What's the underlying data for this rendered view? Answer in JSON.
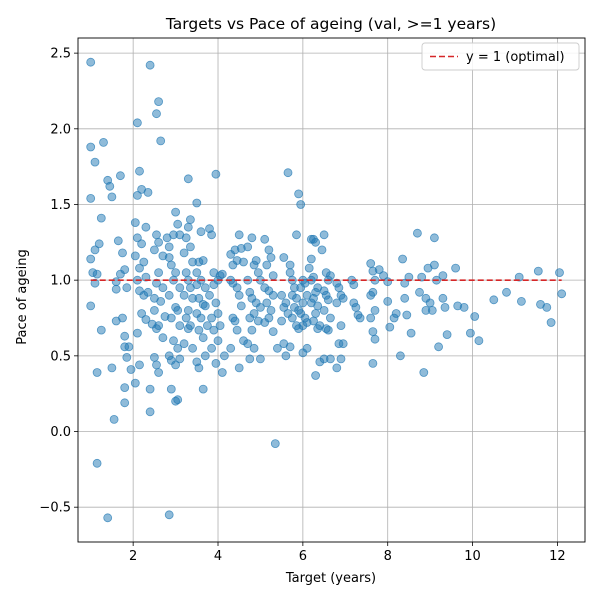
{
  "chart_data": {
    "type": "scatter",
    "title": "Targets vs Pace of ageing (val, >=1 years)",
    "xlabel": "Target (years)",
    "ylabel": "Pace of ageing",
    "xlim": [
      0.7,
      12.65
    ],
    "ylim": [
      -0.73,
      2.6
    ],
    "xticks": [
      2,
      4,
      6,
      8,
      10,
      12
    ],
    "yticks": [
      -0.5,
      0.0,
      0.5,
      1.0,
      1.5,
      2.0,
      2.5
    ],
    "ytick_labels": [
      "−0.5",
      "0.0",
      "0.5",
      "1.0",
      "1.5",
      "2.0",
      "2.5"
    ],
    "grid": true,
    "legend_position": "top-right",
    "colors": {
      "points": "#1f77b4",
      "reference_line": "#d62728"
    },
    "reference_line": {
      "label": "y = 1 (optimal)",
      "y": 1.0,
      "style": "dashed"
    },
    "points": [
      [
        1.0,
        2.44
      ],
      [
        1.0,
        1.88
      ],
      [
        1.1,
        1.78
      ],
      [
        1.3,
        1.91
      ],
      [
        1.4,
        1.66
      ],
      [
        1.45,
        1.62
      ],
      [
        1.5,
        1.55
      ],
      [
        1.0,
        1.54
      ],
      [
        1.25,
        1.41
      ],
      [
        1.2,
        1.24
      ],
      [
        1.1,
        1.2
      ],
      [
        1.0,
        1.14
      ],
      [
        1.05,
        1.05
      ],
      [
        1.15,
        1.04
      ],
      [
        1.1,
        0.98
      ],
      [
        1.0,
        0.83
      ],
      [
        1.25,
        0.67
      ],
      [
        1.15,
        0.39
      ],
      [
        1.5,
        0.42
      ],
      [
        1.55,
        0.08
      ],
      [
        1.15,
        -0.21
      ],
      [
        1.4,
        -0.57
      ],
      [
        1.7,
        1.69
      ],
      [
        1.65,
        1.26
      ],
      [
        1.75,
        1.18
      ],
      [
        1.8,
        1.07
      ],
      [
        1.7,
        1.04
      ],
      [
        1.6,
        0.99
      ],
      [
        1.6,
        0.94
      ],
      [
        1.85,
        0.95
      ],
      [
        1.6,
        0.73
      ],
      [
        1.75,
        0.75
      ],
      [
        1.8,
        0.63
      ],
      [
        1.8,
        0.56
      ],
      [
        1.9,
        0.56
      ],
      [
        1.85,
        0.49
      ],
      [
        1.95,
        0.41
      ],
      [
        1.8,
        0.29
      ],
      [
        1.8,
        0.19
      ],
      [
        2.1,
        2.04
      ],
      [
        2.15,
        1.72
      ],
      [
        2.2,
        1.6
      ],
      [
        2.35,
        1.58
      ],
      [
        2.1,
        1.56
      ],
      [
        2.3,
        1.35
      ],
      [
        2.05,
        1.38
      ],
      [
        2.1,
        1.28
      ],
      [
        2.2,
        1.24
      ],
      [
        2.05,
        1.16
      ],
      [
        2.15,
        1.08
      ],
      [
        2.25,
        1.12
      ],
      [
        2.3,
        1.02
      ],
      [
        2.1,
        1.0
      ],
      [
        2.15,
        0.93
      ],
      [
        2.25,
        0.9
      ],
      [
        2.35,
        0.92
      ],
      [
        2.2,
        0.78
      ],
      [
        2.3,
        0.74
      ],
      [
        2.45,
        0.71
      ],
      [
        2.1,
        0.65
      ],
      [
        2.15,
        0.44
      ],
      [
        2.05,
        0.32
      ],
      [
        2.4,
        0.28
      ],
      [
        2.4,
        0.13
      ],
      [
        2.4,
        2.42
      ],
      [
        2.55,
        2.1
      ],
      [
        2.6,
        2.18
      ],
      [
        2.65,
        1.92
      ],
      [
        2.55,
        1.3
      ],
      [
        2.6,
        1.25
      ],
      [
        2.5,
        1.2
      ],
      [
        2.7,
        1.16
      ],
      [
        2.6,
        1.05
      ],
      [
        2.55,
        0.98
      ],
      [
        2.7,
        0.95
      ],
      [
        2.5,
        0.88
      ],
      [
        2.65,
        0.86
      ],
      [
        2.5,
        0.8
      ],
      [
        2.75,
        0.76
      ],
      [
        2.6,
        0.7
      ],
      [
        2.55,
        0.68
      ],
      [
        2.7,
        0.62
      ],
      [
        2.5,
        0.49
      ],
      [
        2.55,
        0.44
      ],
      [
        2.6,
        0.39
      ],
      [
        2.9,
        0.28
      ],
      [
        2.85,
        -0.55
      ],
      [
        2.8,
        1.28
      ],
      [
        2.85,
        1.22
      ],
      [
        2.95,
        1.3
      ],
      [
        3.0,
        1.45
      ],
      [
        3.05,
        1.37
      ],
      [
        3.1,
        1.3
      ],
      [
        2.85,
        1.15
      ],
      [
        2.9,
        1.1
      ],
      [
        3.0,
        1.05
      ],
      [
        2.95,
        1.0
      ],
      [
        3.1,
        0.95
      ],
      [
        2.85,
        0.9
      ],
      [
        3.0,
        0.82
      ],
      [
        3.05,
        0.8
      ],
      [
        2.9,
        0.75
      ],
      [
        3.1,
        0.7
      ],
      [
        2.95,
        0.6
      ],
      [
        3.05,
        0.55
      ],
      [
        2.85,
        0.5
      ],
      [
        2.9,
        0.47
      ],
      [
        3.0,
        0.44
      ],
      [
        3.1,
        0.48
      ],
      [
        3.05,
        0.21
      ],
      [
        3.0,
        0.2
      ],
      [
        3.3,
        1.67
      ],
      [
        3.35,
        1.4
      ],
      [
        3.3,
        1.35
      ],
      [
        3.25,
        1.28
      ],
      [
        3.35,
        1.22
      ],
      [
        3.2,
        1.18
      ],
      [
        3.4,
        1.12
      ],
      [
        3.25,
        1.05
      ],
      [
        3.3,
        1.0
      ],
      [
        3.35,
        0.95
      ],
      [
        3.2,
        0.9
      ],
      [
        3.4,
        0.88
      ],
      [
        3.3,
        0.8
      ],
      [
        3.25,
        0.75
      ],
      [
        3.35,
        0.7
      ],
      [
        3.3,
        0.68
      ],
      [
        3.2,
        0.58
      ],
      [
        3.4,
        0.55
      ],
      [
        3.5,
        1.51
      ],
      [
        3.6,
        1.32
      ],
      [
        3.55,
        1.12
      ],
      [
        3.65,
        1.13
      ],
      [
        3.5,
        1.05
      ],
      [
        3.6,
        1.0
      ],
      [
        3.5,
        0.97
      ],
      [
        3.7,
        0.95
      ],
      [
        3.55,
        0.88
      ],
      [
        3.65,
        0.84
      ],
      [
        3.7,
        0.83
      ],
      [
        3.5,
        0.78
      ],
      [
        3.6,
        0.75
      ],
      [
        3.75,
        0.7
      ],
      [
        3.55,
        0.67
      ],
      [
        3.65,
        0.62
      ],
      [
        3.7,
        0.5
      ],
      [
        3.5,
        0.46
      ],
      [
        3.55,
        0.42
      ],
      [
        3.65,
        0.28
      ],
      [
        3.8,
        1.34
      ],
      [
        3.85,
        1.3
      ],
      [
        3.95,
        1.7
      ],
      [
        3.9,
        1.05
      ],
      [
        4.0,
        1.0
      ],
      [
        4.05,
        1.03
      ],
      [
        3.9,
        0.97
      ],
      [
        3.8,
        0.9
      ],
      [
        3.95,
        0.85
      ],
      [
        4.0,
        0.78
      ],
      [
        3.85,
        0.75
      ],
      [
        4.05,
        0.7
      ],
      [
        3.9,
        0.67
      ],
      [
        4.0,
        0.6
      ],
      [
        3.85,
        0.55
      ],
      [
        3.95,
        0.45
      ],
      [
        4.1,
        1.04
      ],
      [
        4.15,
        0.5
      ],
      [
        4.1,
        0.39
      ],
      [
        4.3,
        1.17
      ],
      [
        4.35,
        1.1
      ],
      [
        4.4,
        1.2
      ],
      [
        4.45,
        1.13
      ],
      [
        4.5,
        1.3
      ],
      [
        4.55,
        1.21
      ],
      [
        4.6,
        1.12
      ],
      [
        4.3,
        1.0
      ],
      [
        4.35,
        0.98
      ],
      [
        4.45,
        0.95
      ],
      [
        4.5,
        0.9
      ],
      [
        4.55,
        0.83
      ],
      [
        4.35,
        0.75
      ],
      [
        4.4,
        0.73
      ],
      [
        4.45,
        0.67
      ],
      [
        4.3,
        0.55
      ],
      [
        4.5,
        0.42
      ],
      [
        4.6,
        0.6
      ],
      [
        4.7,
        1.22
      ],
      [
        4.8,
        1.28
      ],
      [
        4.85,
        1.1
      ],
      [
        4.9,
        1.13
      ],
      [
        4.95,
        1.05
      ],
      [
        5.0,
        1.0
      ],
      [
        4.7,
        1.0
      ],
      [
        4.75,
        0.92
      ],
      [
        4.8,
        0.88
      ],
      [
        4.9,
        0.85
      ],
      [
        5.0,
        0.82
      ],
      [
        4.85,
        0.78
      ],
      [
        4.75,
        0.75
      ],
      [
        4.95,
        0.73
      ],
      [
        4.8,
        0.67
      ],
      [
        4.7,
        0.58
      ],
      [
        4.85,
        0.55
      ],
      [
        4.75,
        0.48
      ],
      [
        5.0,
        0.48
      ],
      [
        5.1,
        1.27
      ],
      [
        5.2,
        1.2
      ],
      [
        5.25,
        1.15
      ],
      [
        5.15,
        1.1
      ],
      [
        5.3,
        1.03
      ],
      [
        5.1,
        0.95
      ],
      [
        5.2,
        0.93
      ],
      [
        5.3,
        0.9
      ],
      [
        5.15,
        0.85
      ],
      [
        5.25,
        0.8
      ],
      [
        5.2,
        0.75
      ],
      [
        5.1,
        0.72
      ],
      [
        5.3,
        0.66
      ],
      [
        5.4,
        0.55
      ],
      [
        5.35,
        -0.08
      ],
      [
        5.55,
        1.15
      ],
      [
        5.5,
        0.9
      ],
      [
        5.6,
        0.85
      ],
      [
        5.55,
        0.82
      ],
      [
        5.65,
        0.78
      ],
      [
        5.5,
        0.73
      ],
      [
        5.6,
        0.5
      ],
      [
        5.55,
        0.58
      ],
      [
        5.65,
        1.71
      ],
      [
        5.7,
        1.1
      ],
      [
        5.7,
        1.05
      ],
      [
        5.75,
        1.0
      ],
      [
        5.8,
        0.95
      ],
      [
        5.75,
        0.9
      ],
      [
        5.85,
        0.88
      ],
      [
        5.8,
        0.82
      ],
      [
        5.9,
        0.8
      ],
      [
        5.75,
        0.75
      ],
      [
        5.85,
        0.7
      ],
      [
        5.7,
        0.56
      ],
      [
        5.9,
        1.57
      ],
      [
        5.95,
        1.5
      ],
      [
        5.85,
        1.3
      ],
      [
        6.0,
        1.0
      ],
      [
        6.05,
        0.98
      ],
      [
        5.95,
        0.95
      ],
      [
        6.1,
        0.9
      ],
      [
        6.0,
        0.85
      ],
      [
        5.95,
        0.78
      ],
      [
        6.05,
        0.75
      ],
      [
        6.1,
        0.72
      ],
      [
        6.0,
        0.7
      ],
      [
        5.9,
        0.68
      ],
      [
        6.1,
        0.55
      ],
      [
        6.0,
        0.52
      ],
      [
        6.2,
        1.27
      ],
      [
        6.25,
        1.27
      ],
      [
        6.3,
        1.25
      ],
      [
        6.2,
        1.14
      ],
      [
        6.15,
        1.08
      ],
      [
        6.25,
        1.02
      ],
      [
        6.2,
        1.0
      ],
      [
        6.35,
        0.95
      ],
      [
        6.3,
        0.92
      ],
      [
        6.25,
        0.88
      ],
      [
        6.2,
        0.85
      ],
      [
        6.35,
        0.83
      ],
      [
        6.3,
        0.78
      ],
      [
        6.25,
        0.73
      ],
      [
        6.4,
        0.7
      ],
      [
        6.35,
        0.68
      ],
      [
        6.3,
        0.37
      ],
      [
        6.4,
        0.46
      ],
      [
        6.5,
        1.3
      ],
      [
        6.45,
        1.2
      ],
      [
        6.55,
        1.05
      ],
      [
        6.6,
        1.0
      ],
      [
        6.65,
        1.03
      ],
      [
        6.5,
        0.93
      ],
      [
        6.55,
        0.9
      ],
      [
        6.6,
        0.87
      ],
      [
        6.5,
        0.8
      ],
      [
        6.65,
        0.75
      ],
      [
        6.55,
        0.68
      ],
      [
        6.6,
        0.67
      ],
      [
        6.5,
        0.48
      ],
      [
        6.65,
        0.48
      ],
      [
        6.8,
        0.98
      ],
      [
        6.85,
        0.95
      ],
      [
        6.9,
        0.9
      ],
      [
        6.95,
        0.88
      ],
      [
        6.8,
        0.85
      ],
      [
        6.9,
        0.7
      ],
      [
        6.85,
        0.58
      ],
      [
        6.8,
        0.42
      ],
      [
        6.95,
        0.58
      ],
      [
        6.9,
        0.48
      ],
      [
        7.15,
        1.0
      ],
      [
        7.2,
        0.85
      ],
      [
        7.25,
        0.82
      ],
      [
        7.3,
        0.77
      ],
      [
        7.2,
        0.97
      ],
      [
        7.35,
        0.75
      ],
      [
        7.6,
        1.11
      ],
      [
        7.65,
        1.06
      ],
      [
        7.7,
        1.0
      ],
      [
        7.6,
        0.9
      ],
      [
        7.65,
        0.92
      ],
      [
        7.7,
        0.8
      ],
      [
        7.6,
        0.75
      ],
      [
        7.65,
        0.66
      ],
      [
        7.7,
        0.61
      ],
      [
        7.65,
        0.45
      ],
      [
        7.8,
        1.07
      ],
      [
        7.9,
        1.03
      ],
      [
        8.0,
        0.99
      ],
      [
        8.0,
        0.86
      ],
      [
        8.05,
        0.69
      ],
      [
        8.15,
        0.75
      ],
      [
        8.2,
        0.78
      ],
      [
        8.35,
        1.14
      ],
      [
        8.4,
        0.98
      ],
      [
        8.4,
        0.88
      ],
      [
        8.5,
        1.02
      ],
      [
        8.45,
        0.77
      ],
      [
        8.55,
        0.65
      ],
      [
        8.3,
        0.5
      ],
      [
        8.7,
        1.31
      ],
      [
        8.75,
        0.92
      ],
      [
        8.8,
        1.02
      ],
      [
        8.9,
        0.8
      ],
      [
        8.95,
        1.08
      ],
      [
        8.9,
        0.88
      ],
      [
        9.0,
        0.85
      ],
      [
        9.05,
        0.8
      ],
      [
        9.1,
        1.1
      ],
      [
        9.1,
        1.28
      ],
      [
        9.15,
        1.0
      ],
      [
        8.85,
        0.39
      ],
      [
        9.2,
        0.56
      ],
      [
        9.3,
        1.03
      ],
      [
        9.3,
        0.88
      ],
      [
        9.35,
        0.82
      ],
      [
        9.4,
        0.64
      ],
      [
        9.6,
        1.08
      ],
      [
        9.65,
        0.83
      ],
      [
        9.8,
        0.82
      ],
      [
        9.95,
        0.65
      ],
      [
        10.05,
        0.76
      ],
      [
        10.15,
        0.6
      ],
      [
        10.5,
        0.87
      ],
      [
        10.8,
        0.92
      ],
      [
        11.1,
        1.02
      ],
      [
        11.15,
        0.86
      ],
      [
        11.55,
        1.06
      ],
      [
        11.6,
        0.84
      ],
      [
        11.75,
        0.82
      ],
      [
        11.85,
        0.72
      ],
      [
        12.05,
        1.05
      ],
      [
        12.1,
        0.91
      ]
    ]
  }
}
